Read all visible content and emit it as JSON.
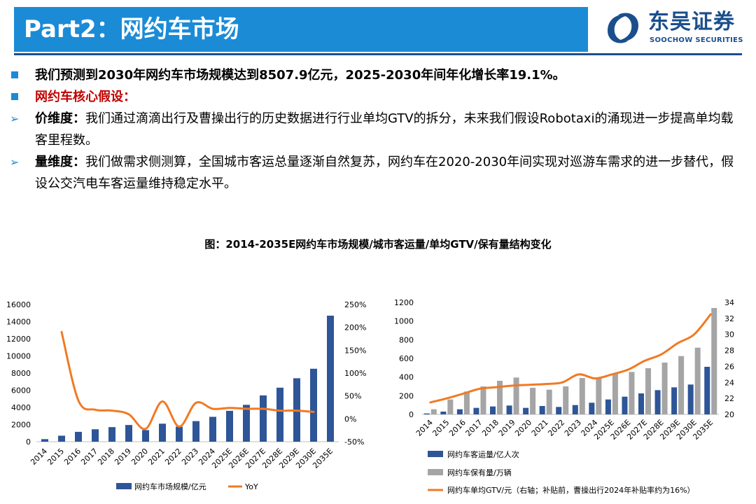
{
  "header": {
    "title": "Part2：网约车市场"
  },
  "logo": {
    "name_cn": "东吴证券",
    "name_en": "SOOCHOW SECURITIES",
    "colors": {
      "brand": "#1b4f8c",
      "accent": "#1b8bd6"
    }
  },
  "bullets": [
    {
      "marker": "square",
      "lead": "",
      "text": "我们预测到2030年网约车市场规模达到8507.9亿元，2025-2030年间年化增长率19.1%。"
    },
    {
      "marker": "square",
      "lead": "",
      "text": "网约车核心假设："
    },
    {
      "marker": "arrow",
      "lead": "价维度：",
      "text": "我们通过滴滴出行及曹操出行的历史数据进行行业单均GTV的拆分，未来我们假设Robotaxi的涌现进一步提高单均载客里程数。"
    },
    {
      "marker": "arrow",
      "lead": "量维度：",
      "text": "我们做需求侧测算，全国城市客运总量逐渐自然复苏，网约车在2020-2030年间实现对巡游车需求的进一步替代，假设公交汽电车客运量维持稳定水平。"
    }
  ],
  "figure_title": "图：2014-2035E网约车市场规模/城市客运量/单均GTV/保有量结构变化",
  "chart_data": [
    {
      "type": "bar",
      "categories": [
        "2014",
        "2015",
        "2016",
        "2017",
        "2018",
        "2019",
        "2020",
        "2021",
        "2022",
        "2023",
        "2024",
        "2025E",
        "2026E",
        "2027E",
        "2028E",
        "2029E",
        "2030E",
        "2035E"
      ],
      "series": [
        {
          "name": "网约车市场规模/亿元",
          "type": "bar",
          "axis": "left",
          "color": "#2e5597",
          "values": [
            300,
            700,
            1150,
            1450,
            1700,
            1950,
            1350,
            2100,
            1750,
            2400,
            2900,
            3600,
            4300,
            5400,
            6300,
            7400,
            8508,
            14700
          ]
        },
        {
          "name": "YoY",
          "type": "line",
          "axis": "right",
          "color": "#f07a24",
          "values": [
            null,
            1.9,
            0.4,
            0.2,
            0.18,
            0.1,
            -0.22,
            0.38,
            -0.17,
            0.35,
            0.22,
            0.24,
            0.22,
            0.22,
            0.18,
            0.18,
            0.15,
            null
          ]
        }
      ],
      "yaxis_left": {
        "min": 0,
        "max": 16000,
        "ticks": [
          "0",
          "2000",
          "4000",
          "6000",
          "8000",
          "10000",
          "12000",
          "14000",
          "16000"
        ]
      },
      "yaxis_right": {
        "min": -0.5,
        "max": 2.5,
        "ticks": [
          "-50%",
          "0%",
          "50%",
          "100%",
          "150%",
          "200%",
          "250%"
        ]
      },
      "legend": [
        "网约车市场规模/亿元",
        "YoY"
      ],
      "legend_position": "bottom"
    },
    {
      "type": "bar",
      "categories": [
        "2014",
        "2015",
        "2016",
        "2017",
        "2018",
        "2019",
        "2020",
        "2021",
        "2022",
        "2023",
        "2024",
        "2025E",
        "2026E",
        "2027E",
        "2028E",
        "2029E",
        "2030E",
        "2035E"
      ],
      "series": [
        {
          "name": "网约车客运量/亿人次",
          "type": "bar",
          "axis": "left",
          "color": "#2e5597",
          "values": [
            10,
            30,
            55,
            70,
            85,
            95,
            70,
            90,
            80,
            100,
            125,
            160,
            190,
            225,
            260,
            290,
            320,
            510
          ]
        },
        {
          "name": "网约车保有量/万辆",
          "type": "bar",
          "axis": "left",
          "color": "#a5a5a5",
          "values": [
            55,
            160,
            245,
            300,
            360,
            395,
            285,
            265,
            300,
            390,
            395,
            435,
            455,
            495,
            555,
            625,
            715,
            1140
          ]
        },
        {
          "name": "网约车单均GTV/元（右轴；补贴前，曹操出行2024年补贴率约为16%）",
          "type": "line",
          "axis": "right",
          "color": "#f07a24",
          "values": [
            21.5,
            22.0,
            22.6,
            23.2,
            23.4,
            23.6,
            23.7,
            23.8,
            24.0,
            25.0,
            24.5,
            25.0,
            25.6,
            26.7,
            27.5,
            28.9,
            30.0,
            32.5
          ]
        }
      ],
      "yaxis_left": {
        "min": 0,
        "max": 1200,
        "ticks": [
          "0",
          "200",
          "400",
          "600",
          "800",
          "1000",
          "1200"
        ]
      },
      "yaxis_right": {
        "min": 20,
        "max": 34,
        "ticks": [
          "20",
          "22",
          "24",
          "26",
          "28",
          "30",
          "32",
          "34"
        ]
      },
      "legend": [
        "网约车客运量/亿人次",
        "网约车保有量/万辆",
        "网约车单均GTV/元（右轴；补贴前，曹操出行2024年补贴率约为16%）"
      ],
      "legend_position": "bottom"
    }
  ]
}
